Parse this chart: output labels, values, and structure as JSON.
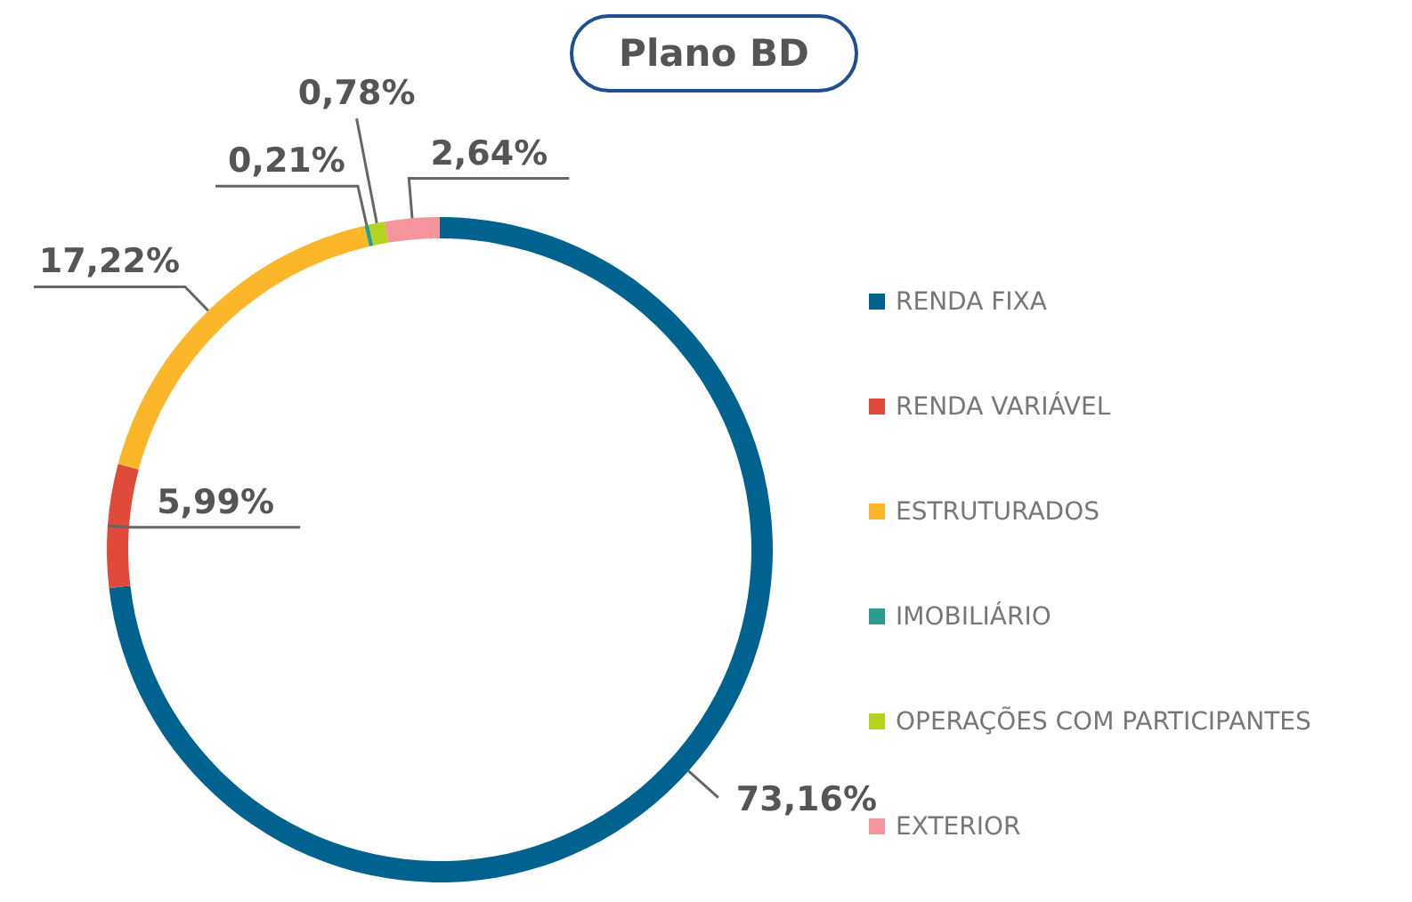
{
  "chart_data": {
    "type": "donut",
    "title": "Plano BD",
    "categories": [
      "RENDA FIXA",
      "RENDA VARIÁVEL",
      "ESTRUTURADOS",
      "IMOBILIÁRIO",
      "OPERAÇÕES COM PARTICIPANTES",
      "EXTERIOR"
    ],
    "values": [
      73.16,
      5.99,
      17.22,
      0.21,
      0.78,
      2.64
    ],
    "value_labels": [
      "73,16%",
      "5,99%",
      "17,22%",
      "0,21%",
      "0,78%",
      "2,64%"
    ],
    "colors": [
      "#00628f",
      "#e04a3a",
      "#fbb62a",
      "#2a9d8f",
      "#b5d31d",
      "#f4959b"
    ],
    "legend": "right"
  }
}
